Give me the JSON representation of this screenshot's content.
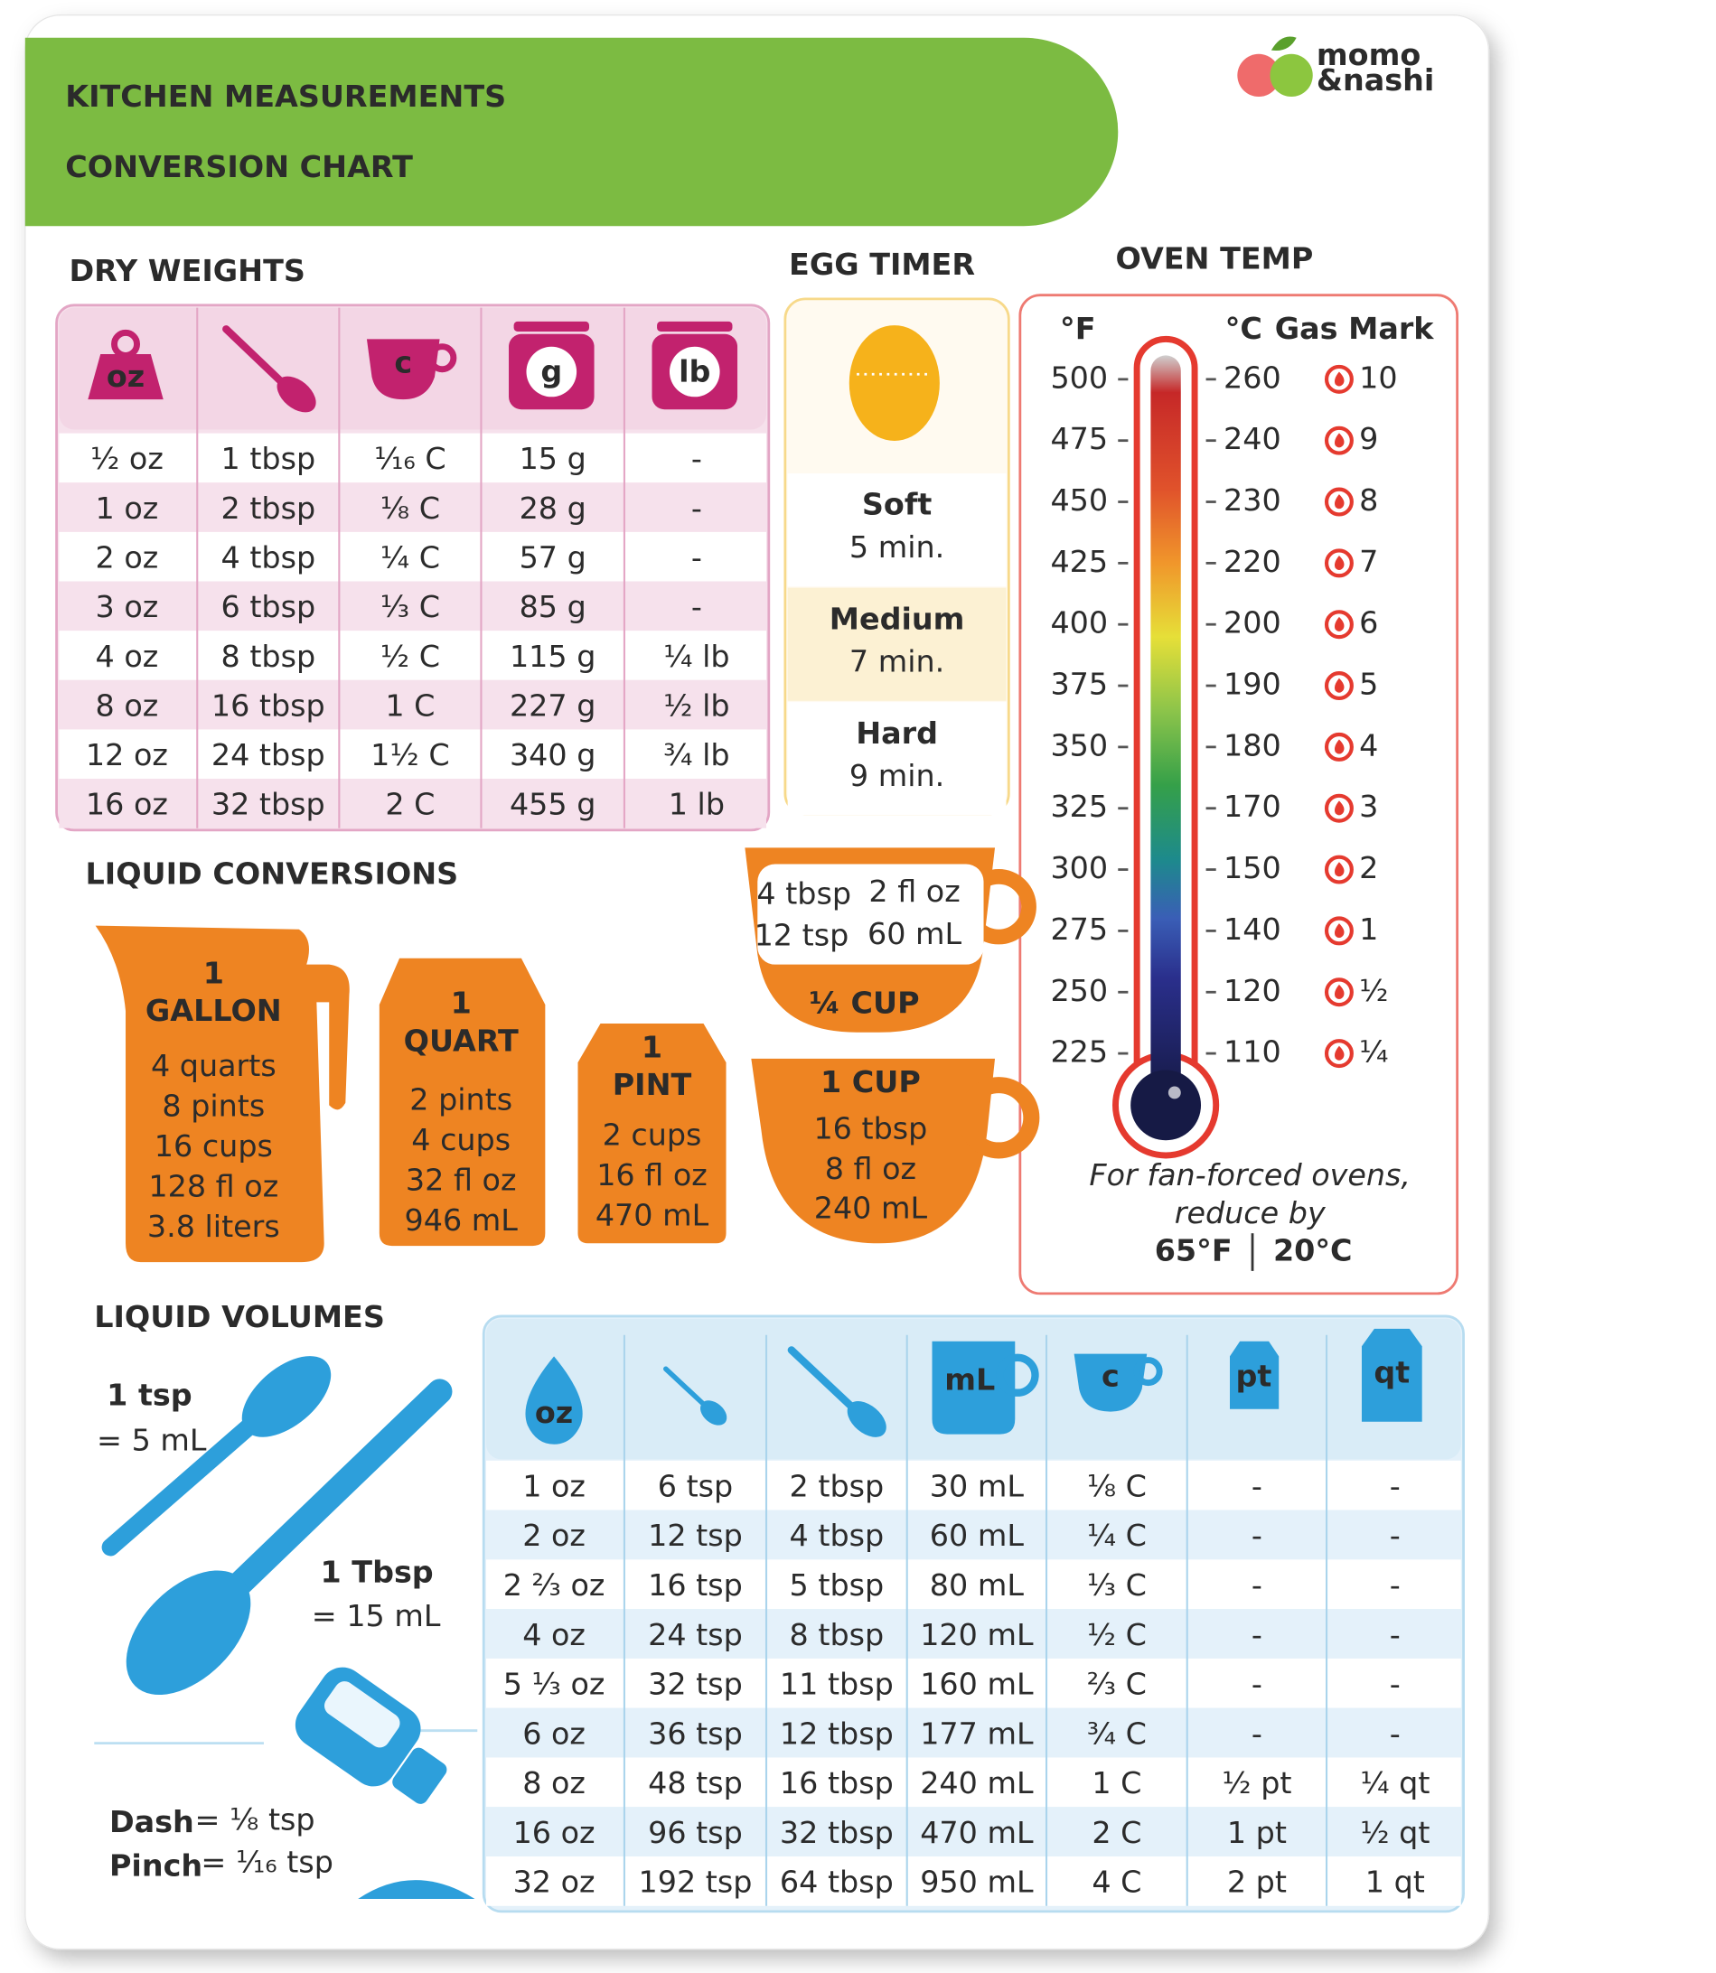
{
  "header": {
    "title": [
      "KITCHEN MEASUREMENTS",
      "CONVERSION CHART"
    ],
    "brand": [
      "momo",
      "&nashi"
    ]
  },
  "dry_weights": {
    "title": "DRY WEIGHTS",
    "header_icons": [
      "oz",
      "c",
      "g",
      "lb"
    ],
    "rows": [
      [
        "½ oz",
        "1 tbsp",
        "¹⁄₁₆ C",
        "15 g",
        "-"
      ],
      [
        "1 oz",
        "2 tbsp",
        "⅛ C",
        "28 g",
        "-"
      ],
      [
        "2 oz",
        "4 tbsp",
        "¼ C",
        "57 g",
        "-"
      ],
      [
        "3 oz",
        "6 tbsp",
        "⅓ C",
        "85 g",
        "-"
      ],
      [
        "4 oz",
        "8 tbsp",
        "½ C",
        "115 g",
        "¼ lb"
      ],
      [
        "8 oz",
        "16 tbsp",
        "1 C",
        "227 g",
        "½ lb"
      ],
      [
        "12 oz",
        "24 tbsp",
        "1½ C",
        "340 g",
        "¾ lb"
      ],
      [
        "16 oz",
        "32 tbsp",
        "2 C",
        "455 g",
        "1 lb"
      ]
    ]
  },
  "egg_timer": {
    "title": "EGG TIMER",
    "items": [
      {
        "label": "Soft",
        "time": "5 min."
      },
      {
        "label": "Medium",
        "time": "7 min."
      },
      {
        "label": "Hard",
        "time": "9 min."
      }
    ]
  },
  "oven_temp": {
    "title": "OVEN TEMP",
    "headers": [
      "°F",
      "°C",
      "Gas Mark"
    ],
    "rows": [
      [
        500,
        260,
        10
      ],
      [
        475,
        240,
        9
      ],
      [
        450,
        230,
        8
      ],
      [
        425,
        220,
        7
      ],
      [
        400,
        200,
        6
      ],
      [
        375,
        190,
        5
      ],
      [
        350,
        180,
        4
      ],
      [
        325,
        170,
        3
      ],
      [
        300,
        150,
        2
      ],
      [
        275,
        140,
        1
      ],
      [
        250,
        120,
        "½"
      ],
      [
        225,
        110,
        "¼"
      ]
    ],
    "note": [
      "For fan-forced ovens,",
      "reduce by"
    ],
    "reduction": [
      "65°F",
      "20°C"
    ]
  },
  "liquid_conversions": {
    "title": "LIQUID CONVERSIONS",
    "gallon": [
      "1",
      "GALLON",
      "4 quarts",
      "8 pints",
      "16 cups",
      "128 fl oz",
      "3.8 liters"
    ],
    "quart": [
      "1",
      "QUART",
      "2 pints",
      "4 cups",
      "32 fl oz",
      "946 mL"
    ],
    "pint": [
      "1",
      "PINT",
      "2 cups",
      "16 fl oz",
      "470 mL"
    ],
    "quarter_cup": {
      "label": "¼ CUP",
      "lines": [
        "4 tbsp",
        "2 fl oz",
        "12 tsp",
        "60 mL"
      ]
    },
    "cup": [
      "1 CUP",
      "16 tbsp",
      "8 fl oz",
      "240 mL"
    ]
  },
  "liquid_volumes": {
    "title": "LIQUID VOLUMES",
    "spoons": [
      {
        "label": "1 tsp",
        "value": "= 5 mL"
      },
      {
        "label": "1 Tbsp",
        "value": "= 15 mL"
      }
    ],
    "pinches": [
      {
        "label": "Dash",
        "value": "= ⅛ tsp"
      },
      {
        "label": "Pinch",
        "value": "= ¹⁄₁₆ tsp"
      }
    ],
    "header_icons": [
      "oz",
      "mL",
      "c",
      "pt",
      "qt"
    ],
    "rows": [
      [
        "1 oz",
        "6 tsp",
        "2 tbsp",
        "30 mL",
        "⅛ C",
        "-",
        "-"
      ],
      [
        "2 oz",
        "12 tsp",
        "4 tbsp",
        "60 mL",
        "¼ C",
        "-",
        "-"
      ],
      [
        "2 ⅔ oz",
        "16 tsp",
        "5 tbsp",
        "80 mL",
        "⅓ C",
        "-",
        "-"
      ],
      [
        "4 oz",
        "24 tsp",
        "8 tbsp",
        "120 mL",
        "½ C",
        "-",
        "-"
      ],
      [
        "5 ⅓ oz",
        "32 tsp",
        "11 tbsp",
        "160 mL",
        "⅔ C",
        "-",
        "-"
      ],
      [
        "6 oz",
        "36 tsp",
        "12 tbsp",
        "177 mL",
        "¾ C",
        "-",
        "-"
      ],
      [
        "8 oz",
        "48 tsp",
        "16 tbsp",
        "240 mL",
        "1 C",
        "½ pt",
        "¼ qt"
      ],
      [
        "16 oz",
        "96 tsp",
        "32 tbsp",
        "470 mL",
        "2 C",
        "1 pt",
        "½ qt"
      ],
      [
        "32 oz",
        "192 tsp",
        "64 tbsp",
        "950 mL",
        "4 C",
        "2 pt",
        "1 qt"
      ]
    ]
  }
}
